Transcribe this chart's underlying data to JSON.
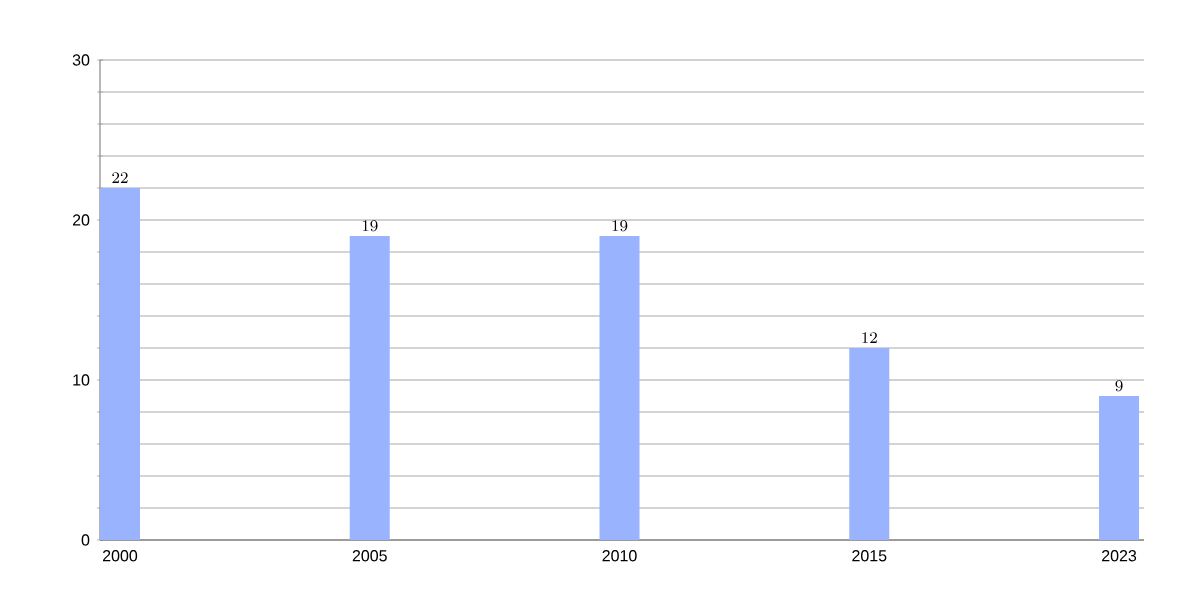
{
  "chart_data": {
    "type": "bar",
    "categories": [
      "2000",
      "2005",
      "2010",
      "2015",
      "2023"
    ],
    "values": [
      22,
      19,
      19,
      12,
      9
    ],
    "color": "#99b3ff",
    "ylim": [
      0,
      30
    ],
    "yticks": [
      0,
      {
        "value": 2,
        "label": null
      },
      {
        "value": 4,
        "label": null
      },
      {
        "value": 6,
        "label": null
      },
      {
        "value": 8,
        "label": null
      },
      10,
      {
        "value": 12,
        "label": null
      },
      {
        "value": 14,
        "label": null
      },
      {
        "value": 16,
        "label": null
      },
      {
        "value": 18,
        "label": null
      },
      20,
      {
        "value": 22,
        "label": null
      },
      {
        "value": 24,
        "label": null
      },
      {
        "value": 26,
        "label": null
      },
      {
        "value": 28,
        "label": null
      },
      30
    ],
    "grid": "y",
    "data_labels": true
  }
}
